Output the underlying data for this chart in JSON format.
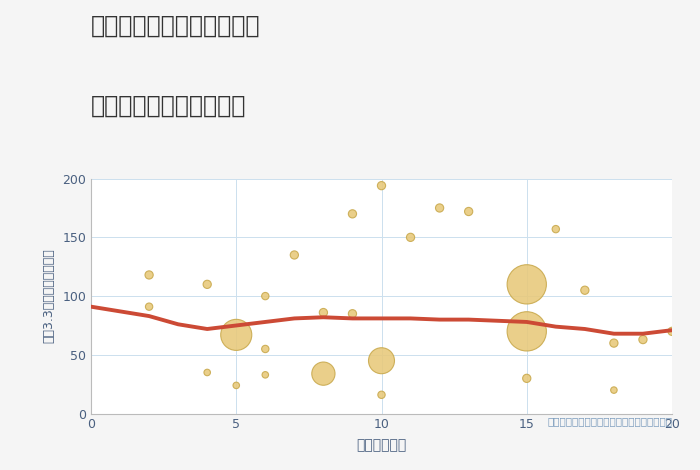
{
  "title_line1": "大阪府堺市堺区竜神橋町の",
  "title_line2": "駅距離別中古戸建て価格",
  "xlabel": "駅距離（分）",
  "ylabel": "坪（3.3㎡）単価（万円）",
  "background_color": "#f5f5f5",
  "plot_background": "#ffffff",
  "bubble_color": "#e8c97a",
  "bubble_edge_color": "#c8a84b",
  "line_color": "#cc4a35",
  "annotation": "円の大きさは、取引のあった物件面積を示す",
  "xlim": [
    0,
    20
  ],
  "ylim": [
    0,
    200
  ],
  "yticks": [
    0,
    50,
    100,
    150,
    200
  ],
  "xticks": [
    0,
    5,
    10,
    15,
    20
  ],
  "scatter_x": [
    2,
    2,
    4,
    4,
    5,
    5,
    6,
    6,
    6,
    7,
    8,
    8,
    9,
    9,
    10,
    10,
    10,
    11,
    12,
    13,
    15,
    15,
    15,
    16,
    17,
    18,
    18,
    19,
    20
  ],
  "scatter_y": [
    118,
    91,
    110,
    35,
    67,
    24,
    100,
    55,
    33,
    135,
    86,
    34,
    170,
    85,
    194,
    45,
    16,
    150,
    175,
    172,
    110,
    70,
    30,
    157,
    105,
    60,
    20,
    63,
    70
  ],
  "scatter_size": [
    35,
    28,
    35,
    22,
    500,
    22,
    28,
    28,
    22,
    35,
    35,
    280,
    35,
    35,
    35,
    350,
    28,
    35,
    35,
    35,
    800,
    800,
    35,
    28,
    35,
    35,
    22,
    35,
    35
  ],
  "trend_x": [
    0,
    1,
    2,
    3,
    4,
    5,
    6,
    7,
    8,
    9,
    10,
    11,
    12,
    13,
    14,
    15,
    16,
    17,
    18,
    19,
    20
  ],
  "trend_y": [
    91,
    87,
    83,
    76,
    72,
    75,
    78,
    81,
    82,
    81,
    81,
    81,
    80,
    80,
    79,
    78,
    74,
    72,
    68,
    68,
    71
  ],
  "title_color": "#333333",
  "tick_color": "#4a6080",
  "ylabel_color": "#4a6080",
  "xlabel_color": "#4a6080",
  "annotation_color": "#7799bb",
  "grid_color": "#cce0ee"
}
